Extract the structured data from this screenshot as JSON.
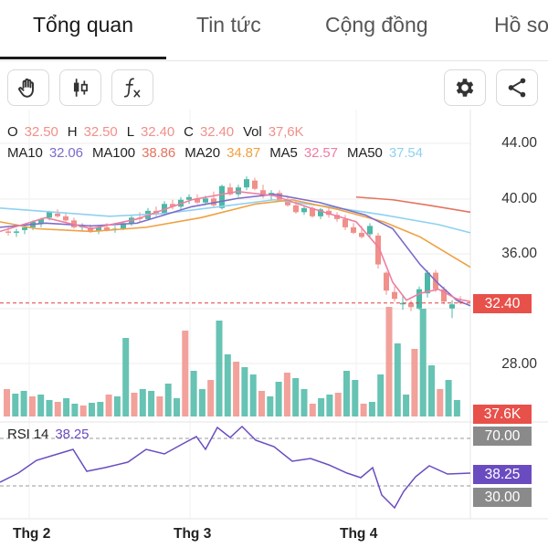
{
  "tabs": [
    {
      "label": "Tổng quan",
      "active": true
    },
    {
      "label": "Tin tức",
      "active": false
    },
    {
      "label": "Cộng đồng",
      "active": false
    },
    {
      "label": "Hồ sơ",
      "active": false
    }
  ],
  "toolbar": {
    "left_icons": [
      "hand-icon",
      "candlestick-icon",
      "function-icon"
    ],
    "right_icons": [
      "gear-icon",
      "share-icon"
    ]
  },
  "ohlc": {
    "o_label": "O",
    "o_value": "32.50",
    "h_label": "H",
    "h_value": "32.50",
    "l_label": "L",
    "l_value": "32.40",
    "c_label": "C",
    "c_value": "32.40",
    "vol_label": "Vol",
    "vol_value": "37,6K"
  },
  "ma_legend": [
    {
      "label": "MA10",
      "value": "32.06",
      "color": "#7b6cc9"
    },
    {
      "label": "MA100",
      "value": "38.86",
      "color": "#e4735e"
    },
    {
      "label": "MA20",
      "value": "34.87",
      "color": "#f0a040"
    },
    {
      "label": "MA5",
      "value": "32.57",
      "color": "#f07ca0"
    },
    {
      "label": "MA50",
      "value": "37.54",
      "color": "#8fd1f0"
    }
  ],
  "price_axis": [
    "44.00",
    "40.00",
    "36.00",
    "28.00"
  ],
  "current_price_badge": "32.40",
  "volume_badge": "37.6K",
  "rsi": {
    "label": "RSI 14",
    "value": "38.25",
    "upper": "70.00",
    "lower": "30.00"
  },
  "x_labels": [
    "Thg 2",
    "Thg 3",
    "Thg 4"
  ],
  "colors": {
    "up": "#4cb8a6",
    "down": "#f0908a",
    "rsi": "#6a4cc0",
    "current_line": "#e04040"
  }
}
